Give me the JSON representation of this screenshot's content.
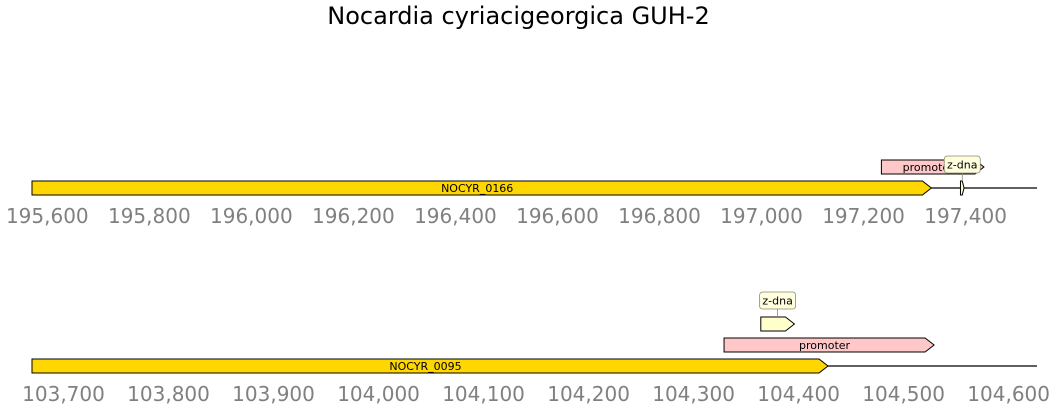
{
  "title": "Nocardia cyriacigeorgica GUH-2",
  "colors": {
    "cds": "#ffd700",
    "promoter": "#ffc8c8",
    "zdna": "#ffffcc",
    "callout_fill": "#ffffe0",
    "callout_stroke": "#8b8b6a",
    "outline": "#000000",
    "tick": "#808080"
  },
  "chart_data": [
    {
      "type": "genome-track",
      "xlim": [
        195570,
        197540
      ],
      "ticks": [
        195600,
        195800,
        196000,
        196200,
        196400,
        196600,
        196800,
        197000,
        197200,
        197400
      ],
      "tick_labels": [
        "195,600",
        "195,800",
        "196,000",
        "196,200",
        "196,400",
        "196,600",
        "196,800",
        "197,000",
        "197,200",
        "197,400"
      ],
      "features": [
        {
          "label": "NOCYR_0166",
          "kind": "cds",
          "start": 195570,
          "end": 197333,
          "strand": 1,
          "level": 0,
          "callout": false
        },
        {
          "label": "promoter",
          "kind": "promoter",
          "start": 197235,
          "end": 197436,
          "strand": 1,
          "level": 1,
          "callout": false
        },
        {
          "label": "z-dna",
          "kind": "zdna",
          "start": 197390,
          "end": 197397,
          "strand": 1,
          "level": 0,
          "callout": true
        }
      ]
    },
    {
      "type": "genome-track",
      "xlim": [
        103670,
        104627
      ],
      "ticks": [
        103700,
        103800,
        103900,
        104000,
        104100,
        104200,
        104300,
        104400,
        104500,
        104600
      ],
      "tick_labels": [
        "103,700",
        "103,800",
        "103,900",
        "104,000",
        "104,100",
        "104,200",
        "104,300",
        "104,400",
        "104,500",
        "104,600"
      ],
      "features": [
        {
          "label": "NOCYR_0095",
          "kind": "cds",
          "start": 103670,
          "end": 104428,
          "strand": 1,
          "level": 0,
          "callout": false
        },
        {
          "label": "promoter",
          "kind": "promoter",
          "start": 104329,
          "end": 104529,
          "strand": 1,
          "level": 1,
          "callout": false
        },
        {
          "label": "z-dna",
          "kind": "zdna",
          "start": 104364,
          "end": 104396,
          "strand": 1,
          "level": 2,
          "callout": true
        }
      ]
    }
  ]
}
